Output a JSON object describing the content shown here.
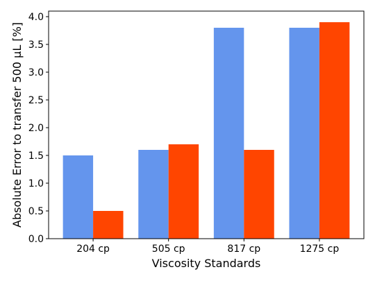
{
  "chart_data": {
    "type": "bar",
    "title": "",
    "xlabel": "Viscosity Standards",
    "ylabel": "Absolute Error to transfer 500 µL [%]",
    "categories": [
      "204 cp",
      "505 cp",
      "817 cp",
      "1275 cp"
    ],
    "series": [
      {
        "color": "#6495ED",
        "values": [
          1.5,
          1.6,
          3.8,
          3.8
        ]
      },
      {
        "color": "#FF4500",
        "values": [
          0.5,
          1.7,
          1.6,
          3.9
        ]
      }
    ],
    "ylim": [
      0,
      4.1
    ],
    "yticks": [
      0.0,
      0.5,
      1.0,
      1.5,
      2.0,
      2.5,
      3.0,
      3.5,
      4.0
    ],
    "ytick_labels": [
      "0.0",
      "0.5",
      "1.0",
      "1.5",
      "2.0",
      "2.5",
      "3.0",
      "3.5",
      "4.0"
    ],
    "grid": false,
    "legend": "none"
  }
}
